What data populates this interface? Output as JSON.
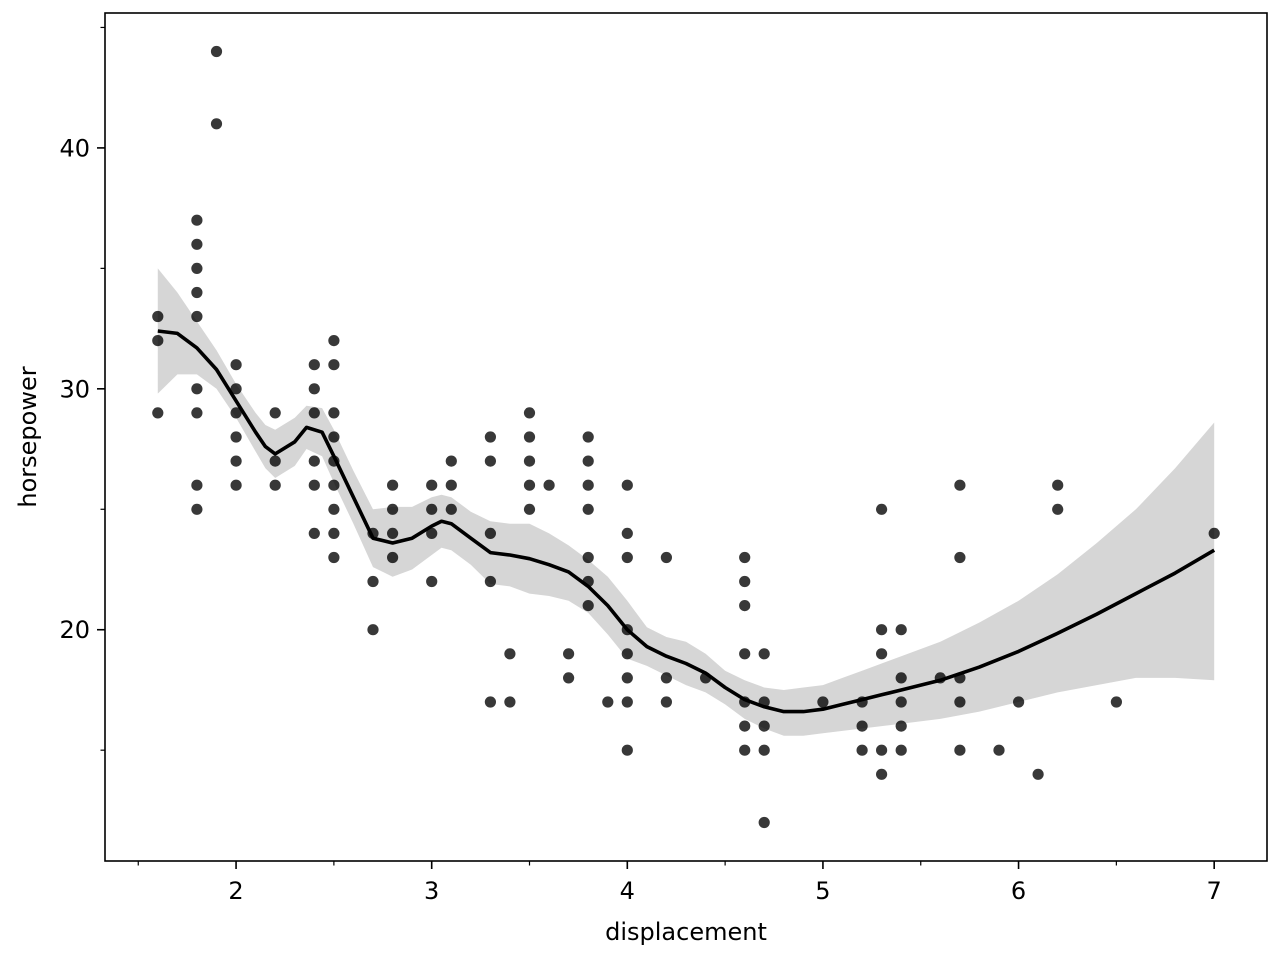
{
  "chart_data": {
    "type": "scatter",
    "xlabel": "displacement",
    "ylabel": "horsepower",
    "xlim": [
      1.33,
      7.27
    ],
    "ylim": [
      10.4,
      45.6
    ],
    "x_ticks": [
      2,
      3,
      4,
      5,
      6,
      7
    ],
    "x_tick_labels": [
      "2",
      "3",
      "4",
      "5",
      "6",
      "7"
    ],
    "x_minor_ticks": [
      1.5,
      2.5,
      3.5,
      4.5,
      5.5,
      6.5
    ],
    "y_ticks": [
      20,
      30,
      40
    ],
    "y_tick_labels": [
      "20",
      "30",
      "40"
    ],
    "y_minor_ticks": [
      15,
      25,
      35,
      45
    ],
    "grid": false,
    "colors": {
      "points": "#000000",
      "trend_line": "#000000",
      "confidence_band": "#d6d6d6"
    },
    "points": [
      [
        1.6,
        33
      ],
      [
        1.6,
        32
      ],
      [
        1.6,
        29
      ],
      [
        1.8,
        37
      ],
      [
        1.8,
        36
      ],
      [
        1.8,
        35
      ],
      [
        1.8,
        34
      ],
      [
        1.8,
        33
      ],
      [
        1.8,
        30
      ],
      [
        1.8,
        29
      ],
      [
        1.8,
        26
      ],
      [
        1.8,
        25
      ],
      [
        1.9,
        44
      ],
      [
        1.9,
        41
      ],
      [
        2.0,
        31
      ],
      [
        2.0,
        30
      ],
      [
        2.0,
        29
      ],
      [
        2.0,
        28
      ],
      [
        2.0,
        27
      ],
      [
        2.0,
        26
      ],
      [
        2.2,
        29
      ],
      [
        2.2,
        27
      ],
      [
        2.2,
        26
      ],
      [
        2.4,
        31
      ],
      [
        2.4,
        30
      ],
      [
        2.4,
        29
      ],
      [
        2.4,
        27
      ],
      [
        2.4,
        26
      ],
      [
        2.4,
        24
      ],
      [
        2.5,
        32
      ],
      [
        2.5,
        31
      ],
      [
        2.5,
        29
      ],
      [
        2.5,
        28
      ],
      [
        2.5,
        27
      ],
      [
        2.5,
        26
      ],
      [
        2.5,
        25
      ],
      [
        2.5,
        24
      ],
      [
        2.5,
        23
      ],
      [
        2.7,
        24
      ],
      [
        2.7,
        22
      ],
      [
        2.7,
        20
      ],
      [
        2.8,
        26
      ],
      [
        2.8,
        25
      ],
      [
        2.8,
        24
      ],
      [
        2.8,
        23
      ],
      [
        3.0,
        26
      ],
      [
        3.0,
        25
      ],
      [
        3.0,
        24
      ],
      [
        3.0,
        22
      ],
      [
        3.1,
        27
      ],
      [
        3.1,
        26
      ],
      [
        3.1,
        25
      ],
      [
        3.3,
        28
      ],
      [
        3.3,
        27
      ],
      [
        3.3,
        24
      ],
      [
        3.3,
        22
      ],
      [
        3.3,
        17
      ],
      [
        3.4,
        19
      ],
      [
        3.4,
        17
      ],
      [
        3.5,
        29
      ],
      [
        3.5,
        28
      ],
      [
        3.5,
        27
      ],
      [
        3.5,
        26
      ],
      [
        3.5,
        25
      ],
      [
        3.6,
        26
      ],
      [
        3.7,
        19
      ],
      [
        3.7,
        18
      ],
      [
        3.8,
        28
      ],
      [
        3.8,
        27
      ],
      [
        3.8,
        26
      ],
      [
        3.8,
        25
      ],
      [
        3.8,
        23
      ],
      [
        3.8,
        22
      ],
      [
        3.8,
        21
      ],
      [
        3.9,
        17
      ],
      [
        4.0,
        26
      ],
      [
        4.0,
        24
      ],
      [
        4.0,
        23
      ],
      [
        4.0,
        20
      ],
      [
        4.0,
        19
      ],
      [
        4.0,
        18
      ],
      [
        4.0,
        17
      ],
      [
        4.0,
        15
      ],
      [
        4.2,
        23
      ],
      [
        4.2,
        18
      ],
      [
        4.2,
        17
      ],
      [
        4.4,
        18
      ],
      [
        4.6,
        23
      ],
      [
        4.6,
        22
      ],
      [
        4.6,
        21
      ],
      [
        4.6,
        19
      ],
      [
        4.6,
        17
      ],
      [
        4.6,
        16
      ],
      [
        4.6,
        15
      ],
      [
        4.7,
        19
      ],
      [
        4.7,
        17
      ],
      [
        4.7,
        16
      ],
      [
        4.7,
        15
      ],
      [
        4.7,
        12
      ],
      [
        5.0,
        17
      ],
      [
        5.2,
        17
      ],
      [
        5.2,
        16
      ],
      [
        5.2,
        15
      ],
      [
        5.3,
        25
      ],
      [
        5.3,
        20
      ],
      [
        5.3,
        19
      ],
      [
        5.3,
        15
      ],
      [
        5.3,
        14
      ],
      [
        5.4,
        20
      ],
      [
        5.4,
        18
      ],
      [
        5.4,
        17
      ],
      [
        5.4,
        16
      ],
      [
        5.4,
        15
      ],
      [
        5.6,
        18
      ],
      [
        5.7,
        26
      ],
      [
        5.7,
        23
      ],
      [
        5.7,
        18
      ],
      [
        5.7,
        17
      ],
      [
        5.7,
        15
      ],
      [
        5.9,
        15
      ],
      [
        6.0,
        17
      ],
      [
        6.1,
        14
      ],
      [
        6.2,
        26
      ],
      [
        6.2,
        25
      ],
      [
        6.5,
        17
      ],
      [
        7.0,
        24
      ]
    ],
    "trend_line": [
      [
        1.6,
        32.4
      ],
      [
        1.7,
        32.3
      ],
      [
        1.8,
        31.7
      ],
      [
        1.9,
        30.8
      ],
      [
        2.0,
        29.5
      ],
      [
        2.1,
        28.2
      ],
      [
        2.15,
        27.6
      ],
      [
        2.2,
        27.3
      ],
      [
        2.3,
        27.8
      ],
      [
        2.36,
        28.4
      ],
      [
        2.44,
        28.2
      ],
      [
        2.5,
        27.2
      ],
      [
        2.6,
        25.5
      ],
      [
        2.7,
        23.8
      ],
      [
        2.8,
        23.6
      ],
      [
        2.9,
        23.8
      ],
      [
        3.0,
        24.3
      ],
      [
        3.05,
        24.5
      ],
      [
        3.1,
        24.4
      ],
      [
        3.2,
        23.8
      ],
      [
        3.3,
        23.2
      ],
      [
        3.4,
        23.1
      ],
      [
        3.5,
        22.95
      ],
      [
        3.6,
        22.7
      ],
      [
        3.7,
        22.4
      ],
      [
        3.8,
        21.8
      ],
      [
        3.9,
        21.0
      ],
      [
        4.0,
        20.0
      ],
      [
        4.1,
        19.3
      ],
      [
        4.2,
        18.9
      ],
      [
        4.3,
        18.6
      ],
      [
        4.4,
        18.2
      ],
      [
        4.5,
        17.6
      ],
      [
        4.6,
        17.1
      ],
      [
        4.7,
        16.8
      ],
      [
        4.8,
        16.6
      ],
      [
        4.9,
        16.6
      ],
      [
        5.0,
        16.7
      ],
      [
        5.1,
        16.9
      ],
      [
        5.2,
        17.1
      ],
      [
        5.3,
        17.3
      ],
      [
        5.4,
        17.5
      ],
      [
        5.6,
        17.9
      ],
      [
        5.8,
        18.45
      ],
      [
        6.0,
        19.1
      ],
      [
        6.2,
        19.85
      ],
      [
        6.4,
        20.65
      ],
      [
        6.6,
        21.5
      ],
      [
        6.8,
        22.35
      ],
      [
        7.0,
        23.3
      ]
    ],
    "confidence_upper": [
      [
        1.6,
        35.0
      ],
      [
        1.7,
        34.0
      ],
      [
        1.8,
        32.8
      ],
      [
        1.9,
        31.6
      ],
      [
        2.0,
        30.2
      ],
      [
        2.1,
        29.0
      ],
      [
        2.15,
        28.5
      ],
      [
        2.2,
        28.3
      ],
      [
        2.3,
        28.8
      ],
      [
        2.36,
        29.3
      ],
      [
        2.44,
        29.2
      ],
      [
        2.5,
        28.3
      ],
      [
        2.6,
        26.6
      ],
      [
        2.7,
        25.0
      ],
      [
        2.8,
        25.1
      ],
      [
        2.9,
        25.1
      ],
      [
        3.0,
        25.5
      ],
      [
        3.05,
        25.6
      ],
      [
        3.1,
        25.5
      ],
      [
        3.2,
        24.9
      ],
      [
        3.3,
        24.5
      ],
      [
        3.4,
        24.4
      ],
      [
        3.5,
        24.4
      ],
      [
        3.6,
        24.0
      ],
      [
        3.7,
        23.5
      ],
      [
        3.8,
        22.9
      ],
      [
        3.9,
        22.2
      ],
      [
        4.0,
        21.2
      ],
      [
        4.1,
        20.1
      ],
      [
        4.2,
        19.7
      ],
      [
        4.3,
        19.5
      ],
      [
        4.4,
        19.0
      ],
      [
        4.5,
        18.3
      ],
      [
        4.6,
        17.9
      ],
      [
        4.7,
        17.6
      ],
      [
        4.8,
        17.5
      ],
      [
        4.9,
        17.6
      ],
      [
        5.0,
        17.7
      ],
      [
        5.1,
        18.0
      ],
      [
        5.2,
        18.3
      ],
      [
        5.3,
        18.6
      ],
      [
        5.4,
        18.9
      ],
      [
        5.6,
        19.5
      ],
      [
        5.8,
        20.3
      ],
      [
        6.0,
        21.2
      ],
      [
        6.2,
        22.3
      ],
      [
        6.4,
        23.6
      ],
      [
        6.6,
        25.0
      ],
      [
        6.8,
        26.7
      ],
      [
        7.0,
        28.6
      ]
    ],
    "confidence_lower": [
      [
        1.6,
        29.8
      ],
      [
        1.7,
        30.6
      ],
      [
        1.8,
        30.6
      ],
      [
        1.9,
        30.0
      ],
      [
        2.0,
        28.8
      ],
      [
        2.1,
        27.4
      ],
      [
        2.15,
        26.7
      ],
      [
        2.2,
        26.3
      ],
      [
        2.3,
        26.8
      ],
      [
        2.36,
        27.5
      ],
      [
        2.44,
        27.2
      ],
      [
        2.5,
        26.1
      ],
      [
        2.6,
        24.4
      ],
      [
        2.7,
        22.6
      ],
      [
        2.8,
        22.2
      ],
      [
        2.9,
        22.5
      ],
      [
        3.0,
        23.1
      ],
      [
        3.05,
        23.4
      ],
      [
        3.1,
        23.3
      ],
      [
        3.2,
        22.7
      ],
      [
        3.3,
        21.9
      ],
      [
        3.4,
        21.8
      ],
      [
        3.5,
        21.5
      ],
      [
        3.6,
        21.4
      ],
      [
        3.7,
        21.2
      ],
      [
        3.8,
        20.7
      ],
      [
        3.9,
        19.8
      ],
      [
        4.0,
        18.8
      ],
      [
        4.1,
        18.5
      ],
      [
        4.2,
        18.1
      ],
      [
        4.3,
        17.7
      ],
      [
        4.4,
        17.4
      ],
      [
        4.5,
        16.9
      ],
      [
        4.6,
        16.3
      ],
      [
        4.7,
        15.9
      ],
      [
        4.8,
        15.6
      ],
      [
        4.9,
        15.6
      ],
      [
        5.0,
        15.7
      ],
      [
        5.1,
        15.8
      ],
      [
        5.2,
        15.9
      ],
      [
        5.3,
        16.0
      ],
      [
        5.4,
        16.1
      ],
      [
        5.6,
        16.3
      ],
      [
        5.8,
        16.6
      ],
      [
        6.0,
        17.0
      ],
      [
        6.2,
        17.4
      ],
      [
        6.4,
        17.7
      ],
      [
        6.6,
        18.0
      ],
      [
        6.8,
        18.0
      ],
      [
        7.0,
        17.9
      ]
    ]
  }
}
